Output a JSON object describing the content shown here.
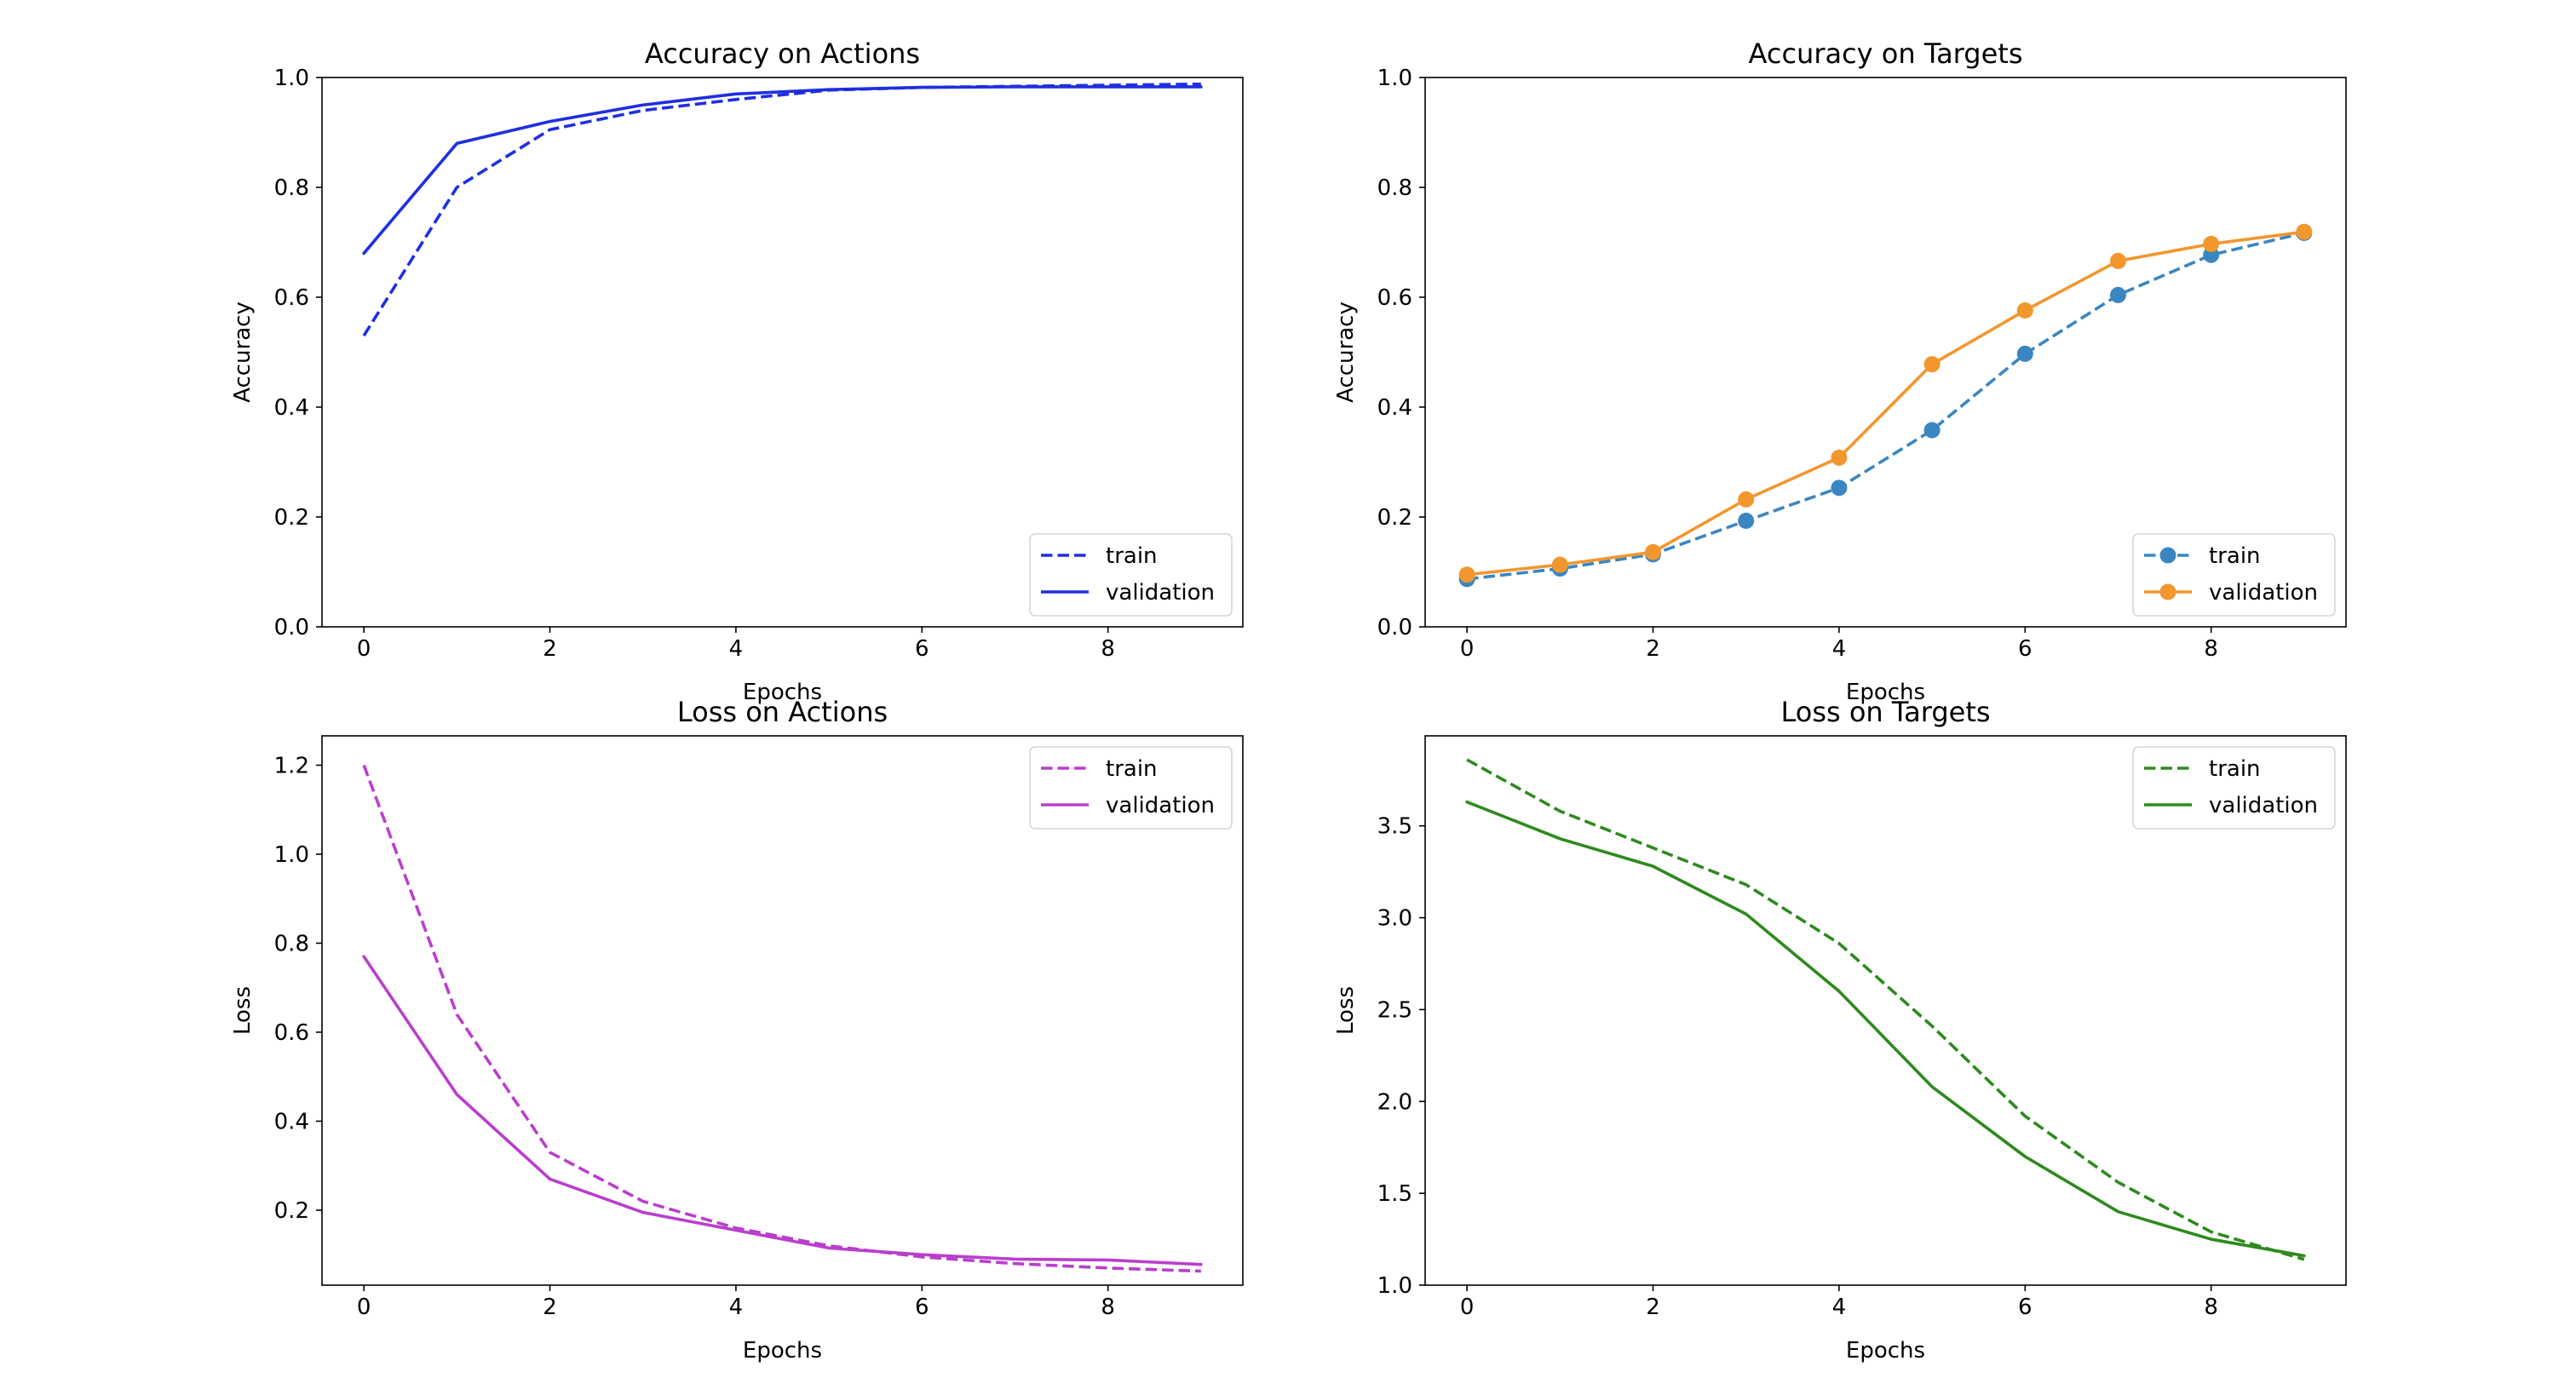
{
  "chart_data": [
    {
      "type": "line",
      "title": "Accuracy on Actions",
      "xlabel": "Epochs",
      "ylabel": "Accuracy",
      "x": [
        0,
        1,
        2,
        3,
        4,
        5,
        6,
        7,
        8,
        9
      ],
      "xlim": [
        -0.45,
        9.45
      ],
      "ylim": [
        0.0,
        1.0
      ],
      "xticks": [
        0,
        2,
        4,
        6,
        8
      ],
      "yticks": [
        0.0,
        0.2,
        0.4,
        0.6,
        0.8,
        1.0
      ],
      "ytick_labels": [
        "0.0",
        "0.2",
        "0.4",
        "0.6",
        "0.8",
        "1.0"
      ],
      "legend": "lower right",
      "grid": false,
      "series": [
        {
          "name": "train",
          "color": "#1f2fe0",
          "style": "dashed",
          "marker": "none",
          "values": [
            0.53,
            0.8,
            0.905,
            0.94,
            0.96,
            0.977,
            0.982,
            0.984,
            0.986,
            0.988
          ]
        },
        {
          "name": "validation",
          "color": "#1f2fe0",
          "style": "solid",
          "marker": "none",
          "values": [
            0.68,
            0.88,
            0.92,
            0.95,
            0.97,
            0.978,
            0.982,
            0.983,
            0.983,
            0.983
          ]
        }
      ]
    },
    {
      "type": "line",
      "title": "Accuracy on Targets",
      "xlabel": "Epochs",
      "ylabel": "Accuracy",
      "x": [
        0,
        1,
        2,
        3,
        4,
        5,
        6,
        7,
        8,
        9
      ],
      "xlim": [
        -0.45,
        9.45
      ],
      "ylim": [
        0.0,
        1.0
      ],
      "xticks": [
        0,
        2,
        4,
        6,
        8
      ],
      "yticks": [
        0.0,
        0.2,
        0.4,
        0.6,
        0.8,
        1.0
      ],
      "ytick_labels": [
        "0.0",
        "0.2",
        "0.4",
        "0.6",
        "0.8",
        "1.0"
      ],
      "legend": "lower right",
      "grid": false,
      "series": [
        {
          "name": "train",
          "color": "#3a86c0",
          "style": "dashed",
          "marker": "circle",
          "values": [
            0.087,
            0.106,
            0.132,
            0.193,
            0.253,
            0.358,
            0.497,
            0.604,
            0.677,
            0.717
          ]
        },
        {
          "name": "validation",
          "color": "#f2962e",
          "style": "solid",
          "marker": "circle",
          "values": [
            0.095,
            0.113,
            0.136,
            0.232,
            0.308,
            0.478,
            0.576,
            0.666,
            0.697,
            0.719
          ]
        }
      ]
    },
    {
      "type": "line",
      "title": "Loss on Actions",
      "xlabel": "Epochs",
      "ylabel": "Loss",
      "x": [
        0,
        1,
        2,
        3,
        4,
        5,
        6,
        7,
        8,
        9
      ],
      "xlim": [
        -0.45,
        9.45
      ],
      "ylim": [
        0.0315,
        1.266
      ],
      "xticks": [
        0,
        2,
        4,
        6,
        8
      ],
      "yticks": [
        0.2,
        0.4,
        0.6,
        0.8,
        1.0,
        1.2
      ],
      "ytick_labels": [
        "0.2",
        "0.4",
        "0.6",
        "0.8",
        "1.0",
        "1.2"
      ],
      "legend": "upper right",
      "grid": false,
      "series": [
        {
          "name": "train",
          "color": "#b93fcc",
          "style": "dashed",
          "marker": "none",
          "values": [
            1.2,
            0.64,
            0.33,
            0.22,
            0.16,
            0.12,
            0.095,
            0.08,
            0.07,
            0.063
          ]
        },
        {
          "name": "validation",
          "color": "#b93fcc",
          "style": "solid",
          "marker": "none",
          "values": [
            0.77,
            0.46,
            0.27,
            0.195,
            0.155,
            0.115,
            0.1,
            0.09,
            0.088,
            0.078
          ]
        }
      ]
    },
    {
      "type": "line",
      "title": "Loss on Targets",
      "xlabel": "Epochs",
      "ylabel": "Loss",
      "x": [
        0,
        1,
        2,
        3,
        4,
        5,
        6,
        7,
        8,
        9
      ],
      "xlim": [
        -0.45,
        9.45
      ],
      "ylim": [
        1.0,
        3.99
      ],
      "xticks": [
        0,
        2,
        4,
        6,
        8
      ],
      "yticks": [
        1.0,
        1.5,
        2.0,
        2.5,
        3.0,
        3.5
      ],
      "ytick_labels": [
        "1.0",
        "1.5",
        "2.0",
        "2.5",
        "3.0",
        "3.5"
      ],
      "legend": "upper right",
      "grid": false,
      "series": [
        {
          "name": "train",
          "color": "#2e8a1e",
          "style": "dashed",
          "marker": "none",
          "values": [
            3.86,
            3.58,
            3.38,
            3.18,
            2.86,
            2.41,
            1.92,
            1.56,
            1.29,
            1.14
          ]
        },
        {
          "name": "validation",
          "color": "#2e8a1e",
          "style": "solid",
          "marker": "none",
          "values": [
            3.63,
            3.43,
            3.28,
            3.02,
            2.6,
            2.08,
            1.7,
            1.4,
            1.25,
            1.16
          ]
        }
      ]
    }
  ]
}
